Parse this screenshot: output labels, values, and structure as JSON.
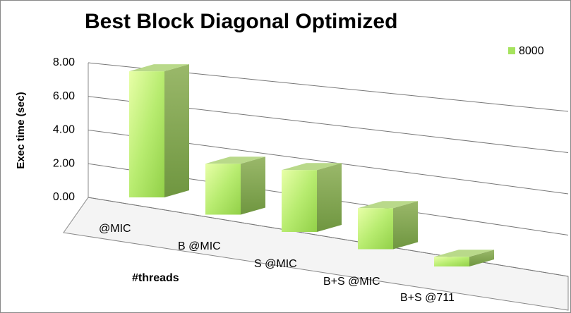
{
  "chart_data": {
    "type": "bar3d",
    "title": "Best Block Diagonal Optimized",
    "x_label": "#threads",
    "y_label": "Exec time (sec)",
    "categories": [
      "@MIC",
      "B @MIC",
      "S @MIC",
      "B+S @MIC",
      "B+S @711"
    ],
    "series": [
      {
        "name": "8000",
        "color": "#a6e35e",
        "values": [
          7.3,
          3.0,
          3.7,
          2.5,
          0.6
        ]
      }
    ],
    "ylim": [
      0,
      8
    ],
    "yticks": [
      {
        "value": 0,
        "label": "0.00"
      },
      {
        "value": 2,
        "label": "2.00"
      },
      {
        "value": 4,
        "label": "4.00"
      },
      {
        "value": 6,
        "label": "6.00"
      },
      {
        "value": 8,
        "label": "8.00"
      }
    ],
    "grid": true,
    "legend": "top-right"
  }
}
